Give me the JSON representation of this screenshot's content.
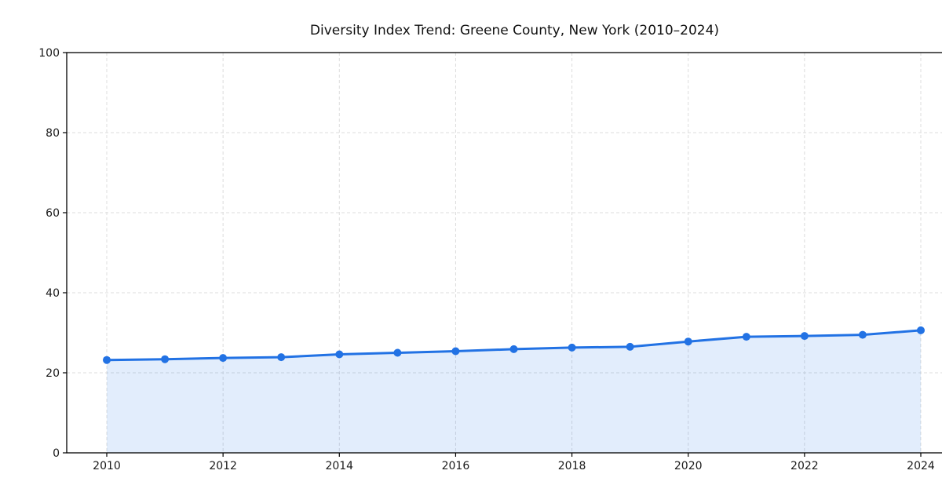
{
  "chart_data": {
    "type": "line",
    "title": "Diversity Index Trend: Greene County, New York (2010–2024)",
    "xlabel": "",
    "ylabel": "",
    "x": [
      2010,
      2011,
      2012,
      2013,
      2014,
      2015,
      2016,
      2017,
      2018,
      2019,
      2020,
      2021,
      2022,
      2023,
      2024
    ],
    "series": [
      {
        "name": "Diversity Index",
        "values": [
          23.2,
          23.4,
          23.7,
          23.9,
          24.6,
          25.0,
          25.4,
          25.9,
          26.3,
          26.5,
          27.8,
          29.0,
          29.2,
          29.5,
          30.6
        ]
      }
    ],
    "ylim": [
      0,
      100
    ],
    "yticks": [
      0,
      20,
      40,
      60,
      80,
      100
    ],
    "xticks": [
      2010,
      2012,
      2014,
      2016,
      2018,
      2020,
      2022,
      2024
    ],
    "grid": true,
    "grid_style": "dashed",
    "legend": "none",
    "area_fill": true,
    "marker": "circle",
    "colors": {
      "line": "#2272e4",
      "marker": "#2272e4",
      "area": "rgba(34,114,228,0.13)",
      "grid": "#dcdcdc",
      "spine": "#000000",
      "tick_label": "#1a1a1a",
      "title": "#111111",
      "background": "#ffffff"
    }
  }
}
